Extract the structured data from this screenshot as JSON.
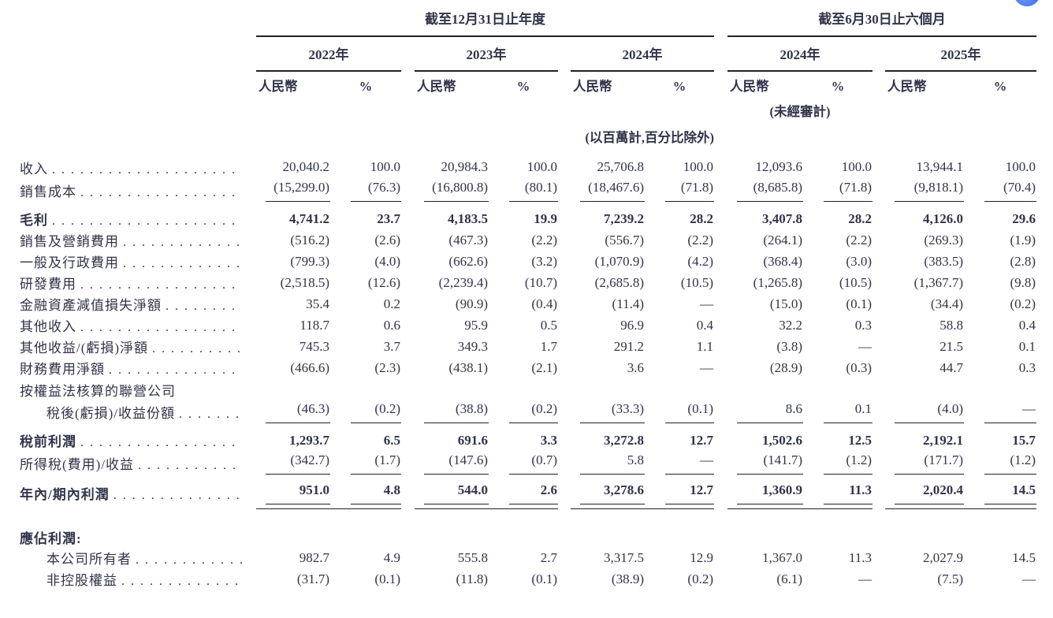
{
  "meta": {
    "background": "#ffffff",
    "text_color": "#31344a",
    "rule_color": "#20222c",
    "corner_accent_blue": "#2f5fe8"
  },
  "header": {
    "period_groups": [
      {
        "title": "截至12月31日止年度"
      },
      {
        "title": "截至6月30日止六個月"
      }
    ],
    "years": [
      "2022年",
      "2023年",
      "2024年",
      "2024年",
      "2025年"
    ],
    "currency_header": "人民幣",
    "percent_header": "%",
    "unaudited_note": "(未經審計)",
    "units_note": "(以百萬計,百分比除外)"
  },
  "rows": [
    {
      "type": "data",
      "label": "收入",
      "leaders": true,
      "bold": false,
      "indent": false,
      "underline": "none",
      "values": [
        "20,040.2",
        "100.0",
        "20,984.3",
        "100.0",
        "25,706.8",
        "100.0",
        "12,093.6",
        "100.0",
        "13,944.1",
        "100.0"
      ]
    },
    {
      "type": "data",
      "label": "銷售成本",
      "leaders": true,
      "bold": false,
      "indent": false,
      "underline": "single",
      "values": [
        "(15,299.0)",
        "(76.3)",
        "(16,800.8)",
        "(80.1)",
        "(18,467.6)",
        "(71.8)",
        "(8,685.8)",
        "(71.8)",
        "(9,818.1)",
        "(70.4)"
      ]
    },
    {
      "type": "data",
      "label": "毛利",
      "leaders": true,
      "bold": true,
      "indent": false,
      "underline": "none",
      "values": [
        "4,741.2",
        "23.7",
        "4,183.5",
        "19.9",
        "7,239.2",
        "28.2",
        "3,407.8",
        "28.2",
        "4,126.0",
        "29.6"
      ]
    },
    {
      "type": "data",
      "label": "銷售及營銷費用",
      "leaders": true,
      "bold": false,
      "indent": false,
      "underline": "none",
      "values": [
        "(516.2)",
        "(2.6)",
        "(467.3)",
        "(2.2)",
        "(556.7)",
        "(2.2)",
        "(264.1)",
        "(2.2)",
        "(269.3)",
        "(1.9)"
      ]
    },
    {
      "type": "data",
      "label": "一般及行政費用",
      "leaders": true,
      "bold": false,
      "indent": false,
      "underline": "none",
      "values": [
        "(799.3)",
        "(4.0)",
        "(662.6)",
        "(3.2)",
        "(1,070.9)",
        "(4.2)",
        "(368.4)",
        "(3.0)",
        "(383.5)",
        "(2.8)"
      ]
    },
    {
      "type": "data",
      "label": "研發費用",
      "leaders": true,
      "bold": false,
      "indent": false,
      "underline": "none",
      "values": [
        "(2,518.5)",
        "(12.6)",
        "(2,239.4)",
        "(10.7)",
        "(2,685.8)",
        "(10.5)",
        "(1,265.8)",
        "(10.5)",
        "(1,367.7)",
        "(9.8)"
      ]
    },
    {
      "type": "data",
      "label": "金融資產減值損失淨額",
      "leaders": true,
      "bold": false,
      "indent": false,
      "underline": "none",
      "values": [
        "35.4",
        "0.2",
        "(90.9)",
        "(0.4)",
        "(11.4)",
        "—",
        "(15.0)",
        "(0.1)",
        "(34.4)",
        "(0.2)"
      ]
    },
    {
      "type": "data",
      "label": "其他收入",
      "leaders": true,
      "bold": false,
      "indent": false,
      "underline": "none",
      "values": [
        "118.7",
        "0.6",
        "95.9",
        "0.5",
        "96.9",
        "0.4",
        "32.2",
        "0.3",
        "58.8",
        "0.4"
      ]
    },
    {
      "type": "data",
      "label": "其他收益/(虧損)淨額",
      "leaders": true,
      "bold": false,
      "indent": false,
      "underline": "none",
      "values": [
        "745.3",
        "3.7",
        "349.3",
        "1.7",
        "291.2",
        "1.1",
        "(3.8)",
        "—",
        "21.5",
        "0.1"
      ]
    },
    {
      "type": "data",
      "label": "財務費用淨額",
      "leaders": true,
      "bold": false,
      "indent": false,
      "underline": "none",
      "values": [
        "(466.6)",
        "(2.3)",
        "(438.1)",
        "(2.1)",
        "3.6",
        "—",
        "(28.9)",
        "(0.3)",
        "44.7",
        "0.3"
      ]
    },
    {
      "type": "label-only",
      "label": "按權益法核算的聯營公司",
      "leaders": false,
      "bold": false,
      "indent": false,
      "underline": "none"
    },
    {
      "type": "data",
      "label": "稅後(虧損)/收益份額",
      "leaders": true,
      "bold": false,
      "indent": true,
      "underline": "single",
      "values": [
        "(46.3)",
        "(0.2)",
        "(38.8)",
        "(0.2)",
        "(33.3)",
        "(0.1)",
        "8.6",
        "0.1",
        "(4.0)",
        "—"
      ]
    },
    {
      "type": "data",
      "label": "稅前利潤",
      "leaders": true,
      "bold": true,
      "indent": false,
      "underline": "none",
      "values": [
        "1,293.7",
        "6.5",
        "691.6",
        "3.3",
        "3,272.8",
        "12.7",
        "1,502.6",
        "12.5",
        "2,192.1",
        "15.7"
      ]
    },
    {
      "type": "data",
      "label": "所得稅(費用)/收益",
      "leaders": true,
      "bold": false,
      "indent": false,
      "underline": "single",
      "values": [
        "(342.7)",
        "(1.7)",
        "(147.6)",
        "(0.7)",
        "5.8",
        "—",
        "(141.7)",
        "(1.2)",
        "(171.7)",
        "(1.2)"
      ]
    },
    {
      "type": "data",
      "label": "年內/期內利潤",
      "leaders": true,
      "bold": true,
      "indent": false,
      "underline": "double",
      "values": [
        "951.0",
        "4.8",
        "544.0",
        "2.6",
        "3,278.6",
        "12.7",
        "1,360.9",
        "11.3",
        "2,020.4",
        "14.5"
      ]
    },
    {
      "type": "spacer"
    },
    {
      "type": "label-only",
      "label": "應佔利潤:",
      "leaders": false,
      "bold": true,
      "indent": false,
      "underline": "none"
    },
    {
      "type": "data",
      "label": "本公司所有者",
      "leaders": true,
      "bold": false,
      "indent": true,
      "underline": "none",
      "values": [
        "982.7",
        "4.9",
        "555.8",
        "2.7",
        "3,317.5",
        "12.9",
        "1,367.0",
        "11.3",
        "2,027.9",
        "14.5"
      ]
    },
    {
      "type": "data",
      "label": "非控股權益",
      "leaders": true,
      "bold": false,
      "indent": true,
      "underline": "none",
      "values": [
        "(31.7)",
        "(0.1)",
        "(11.8)",
        "(0.1)",
        "(38.9)",
        "(0.2)",
        "(6.1)",
        "—",
        "(7.5)",
        "—"
      ]
    }
  ]
}
